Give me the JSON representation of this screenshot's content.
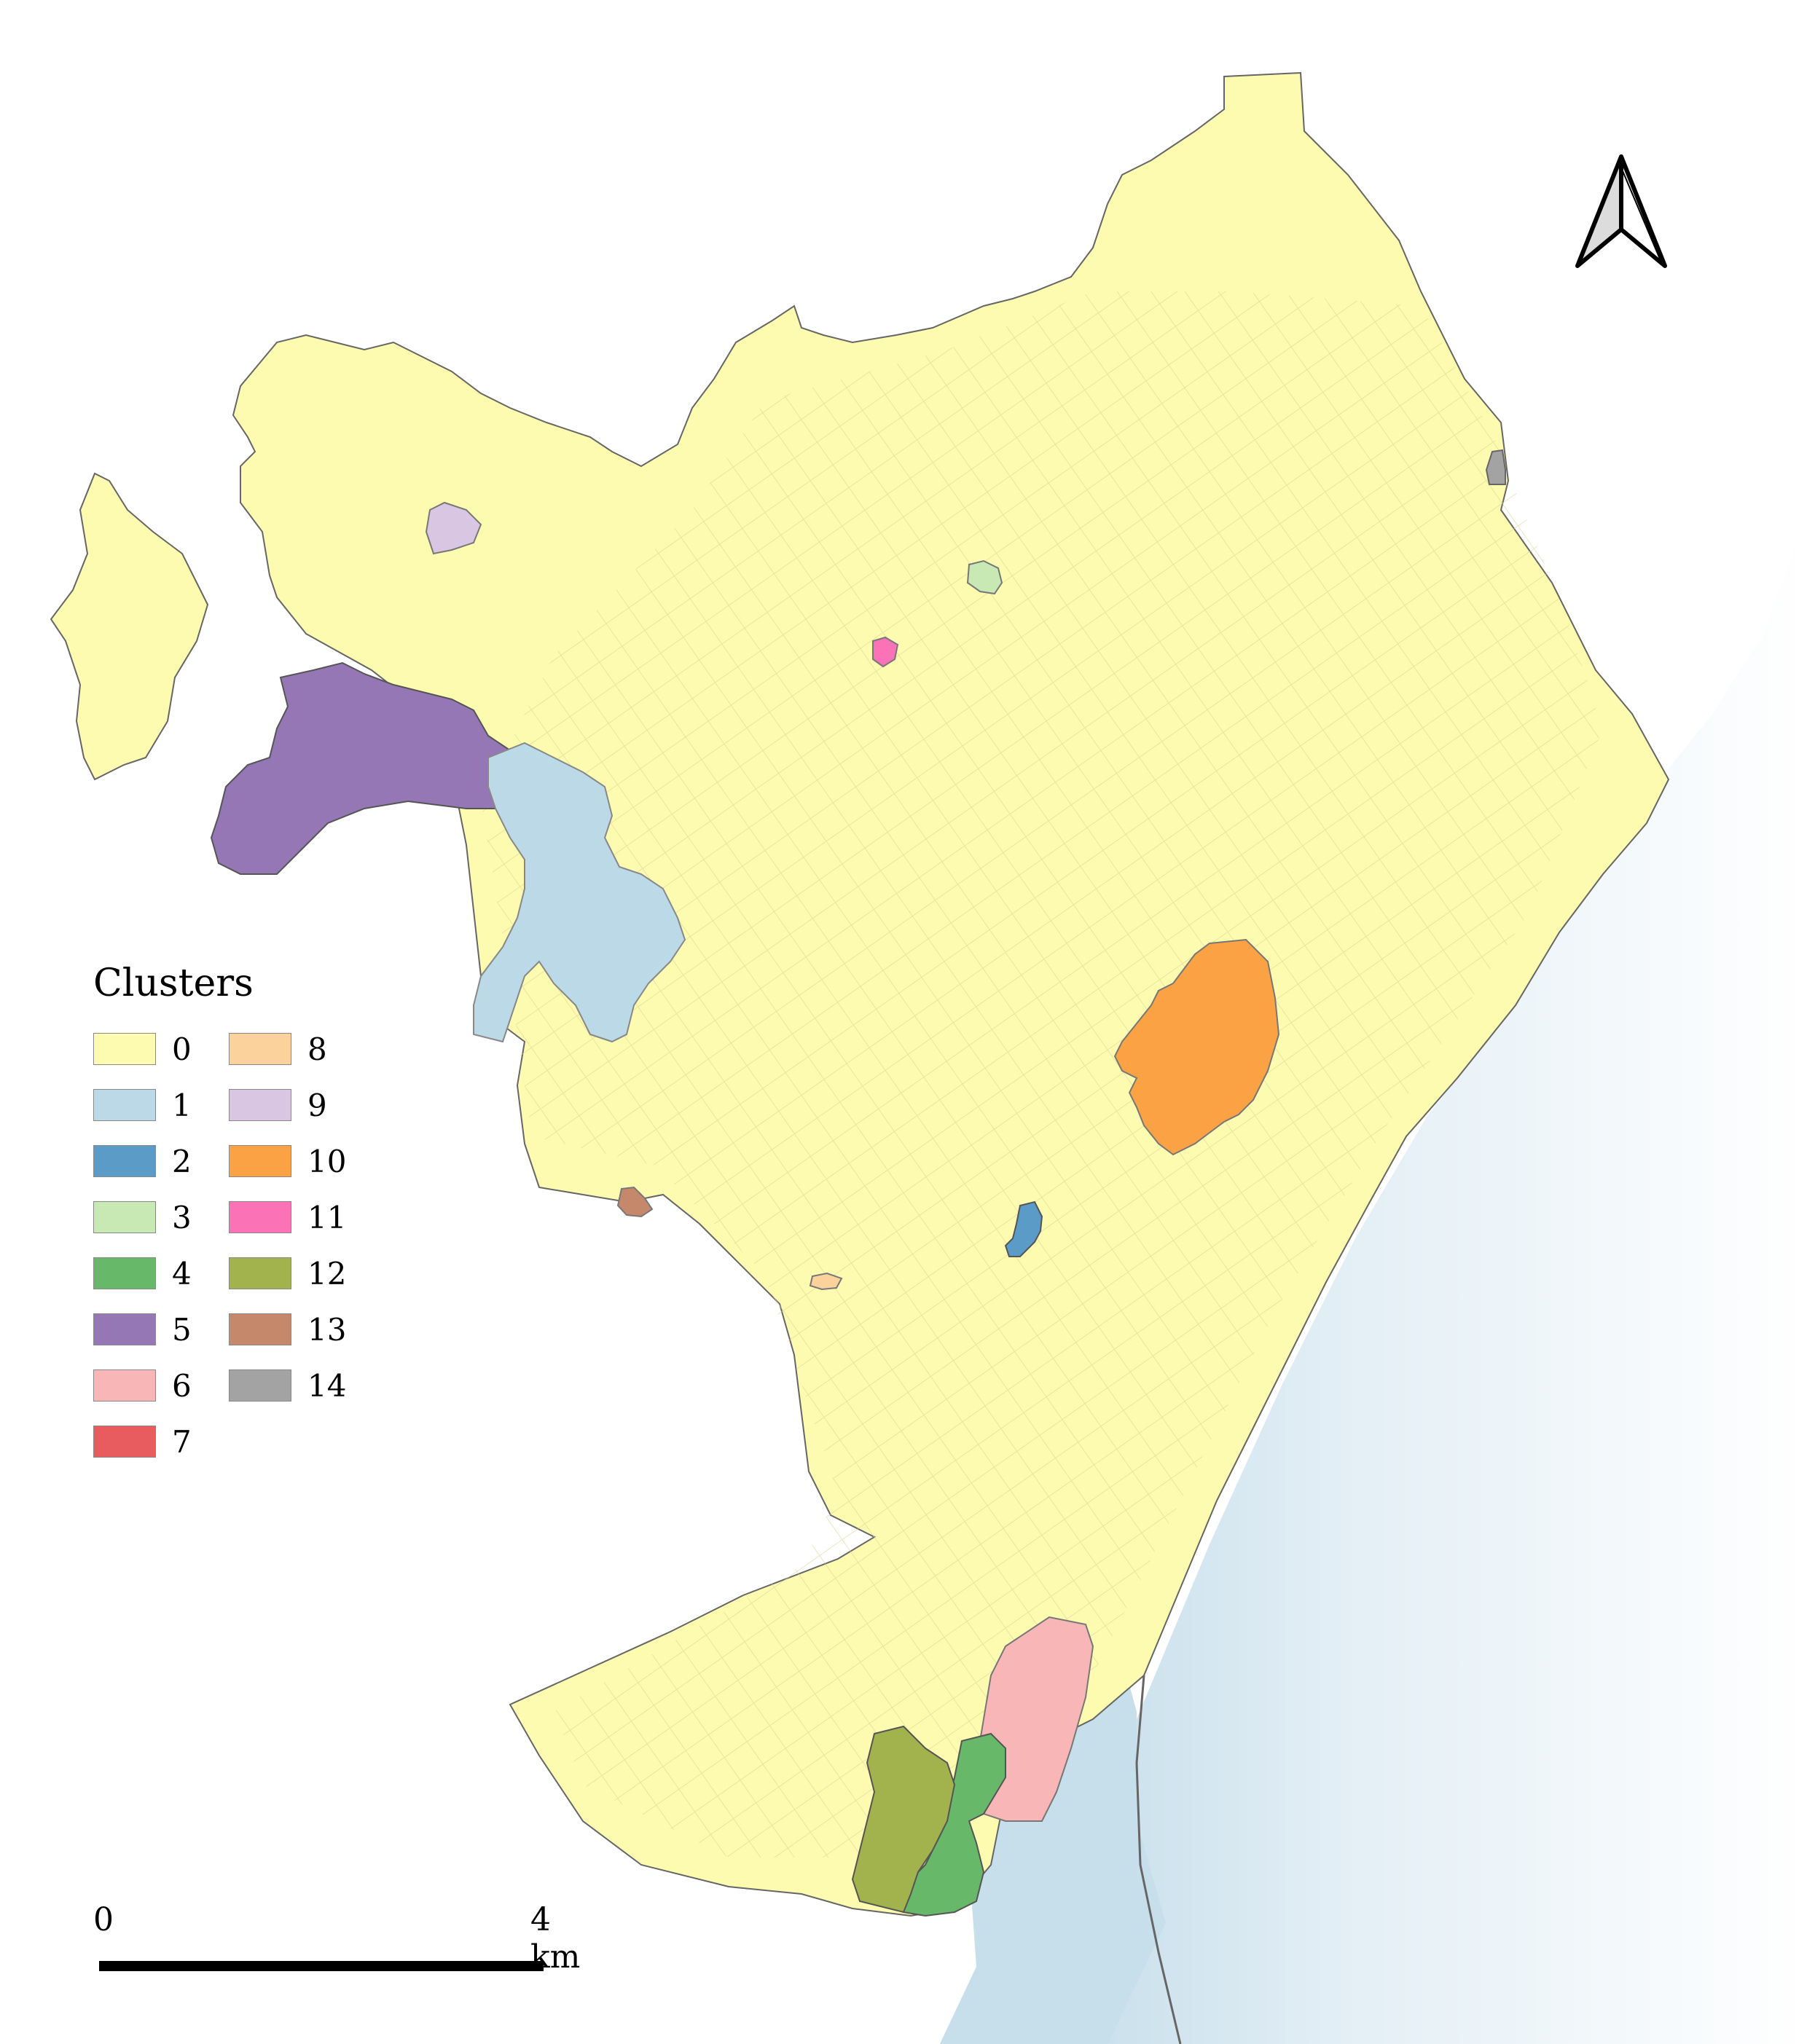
{
  "legend": {
    "title": "Clusters",
    "items": [
      {
        "label": "0",
        "color": "#fdfbb0"
      },
      {
        "label": "1",
        "color": "#bbd9e6"
      },
      {
        "label": "2",
        "color": "#5b9bc8"
      },
      {
        "label": "3",
        "color": "#c8e8b4"
      },
      {
        "label": "4",
        "color": "#68b86a"
      },
      {
        "label": "5",
        "color": "#9577b6"
      },
      {
        "label": "6",
        "color": "#f9b6b7"
      },
      {
        "label": "7",
        "color": "#e85b5f"
      },
      {
        "label": "8",
        "color": "#fbd29c"
      },
      {
        "label": "9",
        "color": "#d9c6e2"
      },
      {
        "label": "10",
        "color": "#fba245"
      },
      {
        "label": "11",
        "color": "#fb72b7"
      },
      {
        "label": "12",
        "color": "#a2b24c"
      },
      {
        "label": "13",
        "color": "#c6886a"
      },
      {
        "label": "14",
        "color": "#a3a3a3"
      }
    ]
  },
  "scale_bar": {
    "start_label": "0",
    "end_label": "4 km"
  },
  "north_arrow": {
    "icon": "north-arrow-icon"
  },
  "colors": {
    "sea": "#c7dfeb",
    "boundary": "#666666",
    "street": "#d9d39a"
  }
}
